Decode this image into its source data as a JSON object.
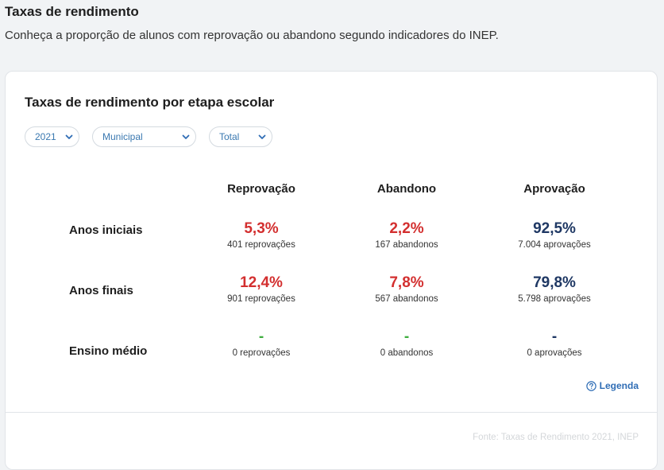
{
  "header": {
    "title": "Taxas de rendimento",
    "subtitle": "Conheça a proporção de alunos com reprovação ou abandono segundo indicadores do INEP."
  },
  "card": {
    "title": "Taxas de rendimento por etapa escolar",
    "filters": {
      "year": "2021",
      "network": "Municipal",
      "location": "Total"
    },
    "columns": [
      "Reprovação",
      "Abandono",
      "Aprovação"
    ],
    "rows": [
      {
        "label": "Anos iniciais",
        "reprovacao": {
          "pct": "5,3%",
          "count": "401 reprovações"
        },
        "abandono": {
          "pct": "2,2%",
          "count": "167 abandonos"
        },
        "aprovacao": {
          "pct": "92,5%",
          "count": "7.004 aprovações"
        }
      },
      {
        "label": "Anos finais",
        "reprovacao": {
          "pct": "12,4%",
          "count": "901 reprovações"
        },
        "abandono": {
          "pct": "7,8%",
          "count": "567 abandonos"
        },
        "aprovacao": {
          "pct": "79,8%",
          "count": "5.798 aprovações"
        }
      },
      {
        "label": "Ensino médio",
        "reprovacao": {
          "pct": "-",
          "count": "0 reprovações"
        },
        "abandono": {
          "pct": "-",
          "count": "0 abandonos"
        },
        "aprovacao": {
          "pct": "-",
          "count": "0 aprovações"
        }
      }
    ],
    "legend_label": "Legenda",
    "source": "Fonte: Taxas de Rendimento 2021, INEP"
  },
  "colors": {
    "negative": "#d32f2f",
    "positive": "#1f3864",
    "empty_reprovacao_abandono": "#3fae3f",
    "link": "#2f6db5"
  }
}
